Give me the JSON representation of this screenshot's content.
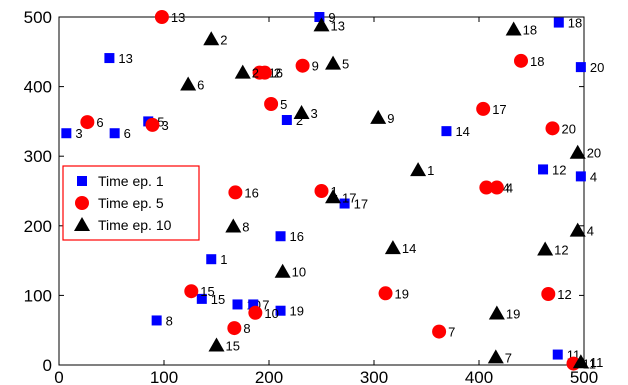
{
  "chart_data": {
    "type": "scatter",
    "title": "",
    "xlabel": "",
    "ylabel": "",
    "xlim": [
      0,
      500
    ],
    "ylim": [
      0,
      500
    ],
    "xticks": [
      0,
      100,
      200,
      300,
      400,
      500
    ],
    "yticks": [
      0,
      100,
      200,
      300,
      400,
      500
    ],
    "grid": false,
    "legend_position": "center-left",
    "series": [
      {
        "name": "Time ep. 1",
        "marker": "square",
        "color": "#0000ff",
        "points": [
          {
            "x": 48,
            "y": 441,
            "label": "13"
          },
          {
            "x": 248,
            "y": 500,
            "label": "9"
          },
          {
            "x": 476,
            "y": 492,
            "label": "18"
          },
          {
            "x": 497,
            "y": 428,
            "label": "20"
          },
          {
            "x": 7,
            "y": 333,
            "label": "3"
          },
          {
            "x": 53,
            "y": 333,
            "label": "6"
          },
          {
            "x": 85,
            "y": 350,
            "label": "5"
          },
          {
            "x": 217,
            "y": 352,
            "label": "2"
          },
          {
            "x": 369,
            "y": 336,
            "label": "14"
          },
          {
            "x": 461,
            "y": 281,
            "label": "12"
          },
          {
            "x": 497,
            "y": 271,
            "label": "4"
          },
          {
            "x": 272,
            "y": 232,
            "label": "17"
          },
          {
            "x": 211,
            "y": 185,
            "label": "16"
          },
          {
            "x": 145,
            "y": 152,
            "label": "1"
          },
          {
            "x": 136,
            "y": 95,
            "label": "15"
          },
          {
            "x": 170,
            "y": 87,
            "label": "10"
          },
          {
            "x": 185,
            "y": 87,
            "label": "7"
          },
          {
            "x": 211,
            "y": 78,
            "label": "19"
          },
          {
            "x": 93,
            "y": 64,
            "label": "8"
          },
          {
            "x": 475,
            "y": 15,
            "label": "11"
          }
        ]
      },
      {
        "name": "Time ep. 5",
        "marker": "circle",
        "color": "#ff0000",
        "points": [
          {
            "x": 98,
            "y": 500,
            "label": "13"
          },
          {
            "x": 232,
            "y": 430,
            "label": "9"
          },
          {
            "x": 191,
            "y": 420,
            "label": "16"
          },
          {
            "x": 196,
            "y": 420,
            "label": "2"
          },
          {
            "x": 440,
            "y": 437,
            "label": "18"
          },
          {
            "x": 27,
            "y": 349,
            "label": "6"
          },
          {
            "x": 89,
            "y": 345,
            "label": "3"
          },
          {
            "x": 202,
            "y": 375,
            "label": "5"
          },
          {
            "x": 404,
            "y": 368,
            "label": "17"
          },
          {
            "x": 470,
            "y": 340,
            "label": "20"
          },
          {
            "x": 168,
            "y": 248,
            "label": "16"
          },
          {
            "x": 250,
            "y": 250,
            "label": "1"
          },
          {
            "x": 407,
            "y": 255,
            "label": "14"
          },
          {
            "x": 417,
            "y": 255,
            "label": "4"
          },
          {
            "x": 126,
            "y": 106,
            "label": "15"
          },
          {
            "x": 311,
            "y": 103,
            "label": "19"
          },
          {
            "x": 466,
            "y": 102,
            "label": "12"
          },
          {
            "x": 187,
            "y": 75,
            "label": "10"
          },
          {
            "x": 167,
            "y": 53,
            "label": "8"
          },
          {
            "x": 362,
            "y": 48,
            "label": "7"
          },
          {
            "x": 490,
            "y": 2,
            "label": "11"
          }
        ]
      },
      {
        "name": "Time ep. 10",
        "marker": "triangle",
        "color": "#000000",
        "points": [
          {
            "x": 145,
            "y": 468,
            "label": "2"
          },
          {
            "x": 250,
            "y": 488,
            "label": "13"
          },
          {
            "x": 433,
            "y": 482,
            "label": "18"
          },
          {
            "x": 261,
            "y": 433,
            "label": "5"
          },
          {
            "x": 175,
            "y": 420,
            "label": "2"
          },
          {
            "x": 123,
            "y": 403,
            "label": "6"
          },
          {
            "x": 231,
            "y": 362,
            "label": "3"
          },
          {
            "x": 304,
            "y": 355,
            "label": "9"
          },
          {
            "x": 494,
            "y": 305,
            "label": "20"
          },
          {
            "x": 342,
            "y": 280,
            "label": "1"
          },
          {
            "x": 261,
            "y": 241,
            "label": "17"
          },
          {
            "x": 166,
            "y": 199,
            "label": "8"
          },
          {
            "x": 494,
            "y": 193,
            "label": "4"
          },
          {
            "x": 318,
            "y": 168,
            "label": "14"
          },
          {
            "x": 463,
            "y": 166,
            "label": "12"
          },
          {
            "x": 213,
            "y": 134,
            "label": "10"
          },
          {
            "x": 417,
            "y": 74,
            "label": "19"
          },
          {
            "x": 150,
            "y": 28,
            "label": "15"
          },
          {
            "x": 416,
            "y": 11,
            "label": "7"
          },
          {
            "x": 497,
            "y": 4,
            "label": "11"
          }
        ]
      }
    ]
  }
}
